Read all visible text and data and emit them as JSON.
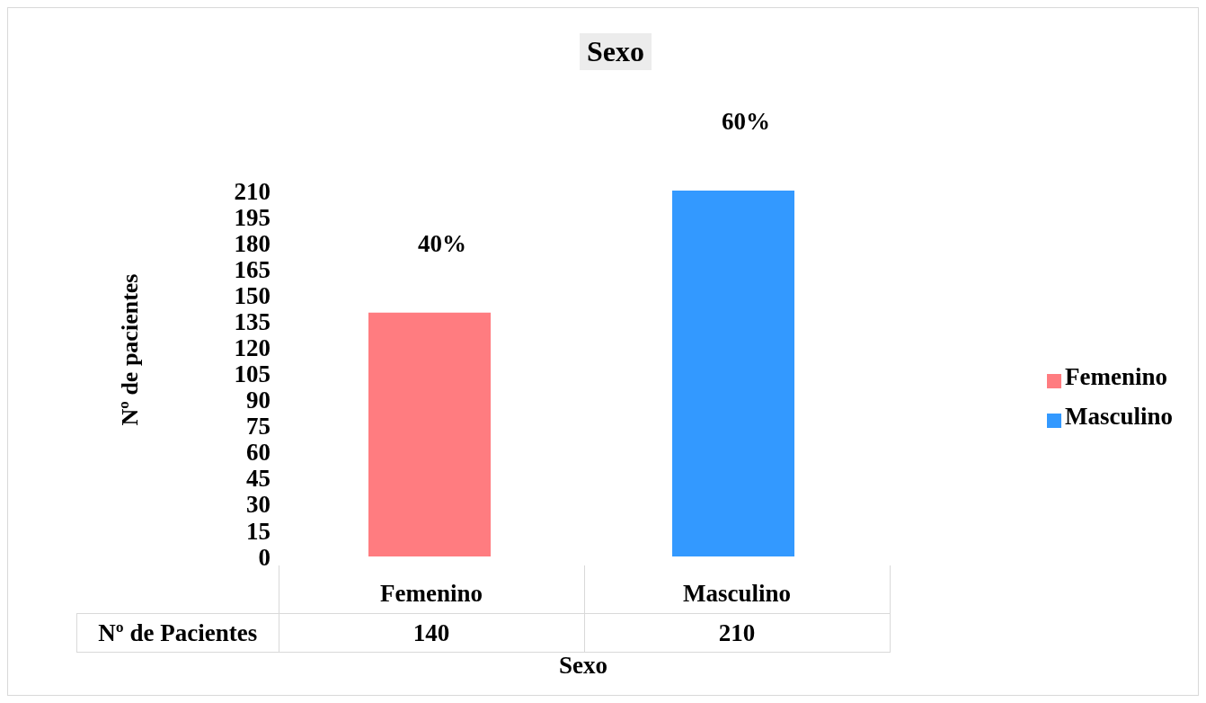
{
  "chart_data": {
    "type": "bar",
    "title": "Sexo",
    "xlabel": "Sexo",
    "ylabel": "Nº de pacientes",
    "categories": [
      "Femenino",
      "Masculino"
    ],
    "series": [
      {
        "name": "Femenino",
        "color": "#ff7c80",
        "values": [
          140,
          null
        ],
        "value_labels": [
          "140",
          null
        ]
      },
      {
        "name": "Masculino",
        "color": "#3399ff",
        "values": [
          null,
          210
        ],
        "value_labels": [
          null,
          "210"
        ]
      }
    ],
    "stacked": true,
    "annotations": [
      "Nº de Pacientes",
      {
        "text": "40%",
        "x": "Femenino",
        "y": 140
      },
      {
        "text": "60%",
        "x": "Masculino",
        "y": 210
      }
    ],
    "ylim": [
      0,
      210
    ],
    "yticks": [
      0,
      15,
      30,
      45,
      60,
      75,
      90,
      105,
      120,
      135,
      150,
      165,
      180,
      195,
      210
    ],
    "grid": false,
    "legend": "right"
  }
}
